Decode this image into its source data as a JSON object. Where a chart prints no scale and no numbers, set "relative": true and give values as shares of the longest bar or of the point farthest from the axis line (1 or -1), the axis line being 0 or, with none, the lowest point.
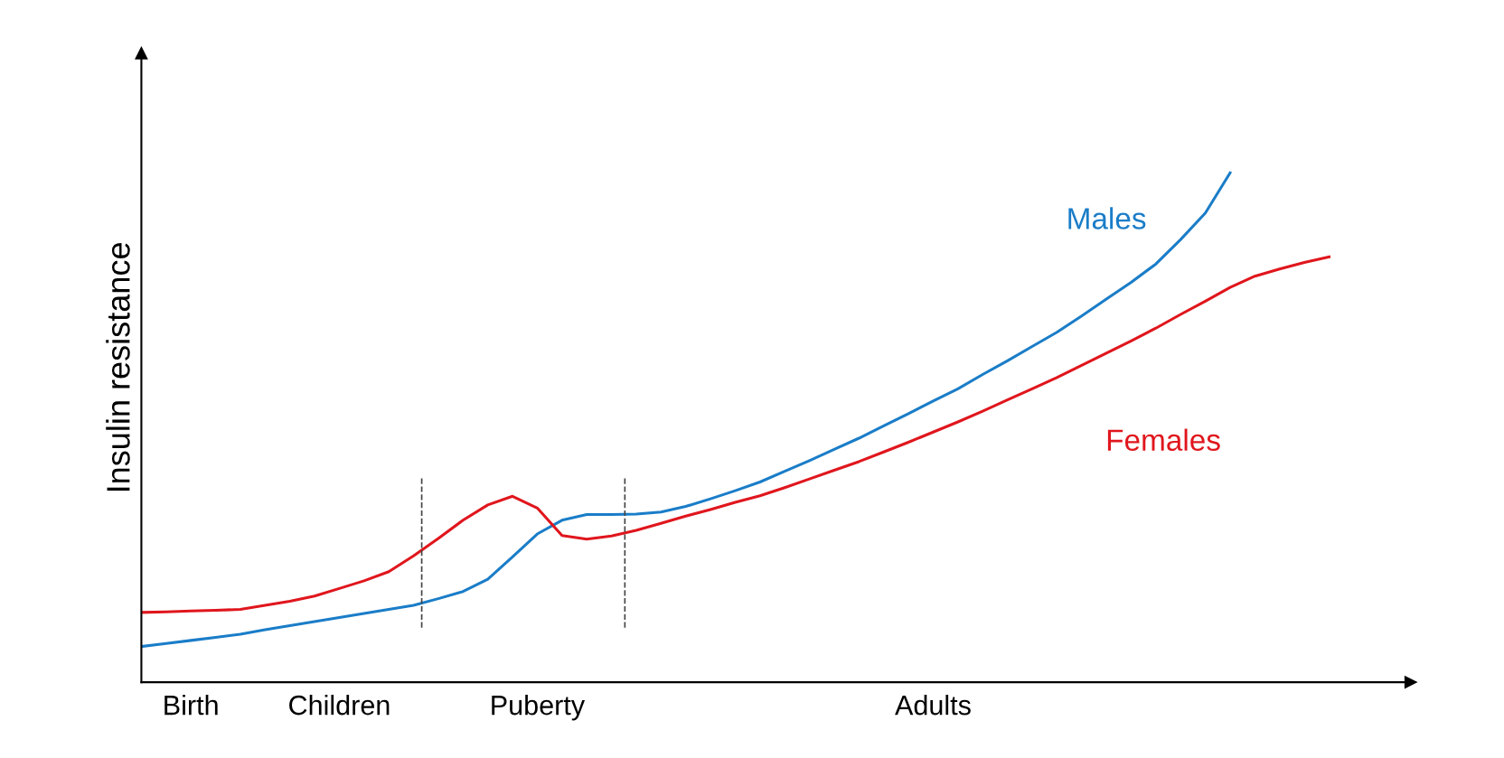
{
  "chart_data": {
    "type": "line",
    "ylabel": "Insulin resistance",
    "relative": true,
    "categories": [
      null,
      null,
      "Birth",
      null,
      null,
      null,
      null,
      null,
      "Children",
      null,
      null,
      null,
      null,
      null,
      null,
      null,
      "Puberty",
      null,
      null,
      null,
      null,
      null,
      null,
      null,
      null,
      null,
      null,
      null,
      null,
      null,
      null,
      null,
      "Adults",
      null,
      null,
      null,
      null,
      null,
      null,
      null,
      null,
      null,
      null,
      null,
      null,
      null,
      null,
      null,
      null
    ],
    "series": [
      {
        "name": "Males",
        "color": "#1a7dc8",
        "values": [
          0.07,
          0.076,
          0.082,
          0.088,
          0.094,
          0.103,
          0.111,
          0.119,
          0.127,
          0.135,
          0.143,
          0.151,
          0.164,
          0.178,
          0.202,
          0.246,
          0.291,
          0.318,
          0.329,
          0.329,
          0.33,
          0.334,
          0.345,
          0.36,
          0.376,
          0.393,
          0.414,
          0.435,
          0.457,
          0.479,
          0.503,
          0.527,
          0.552,
          0.576,
          0.604,
          0.631,
          0.659,
          0.687,
          0.719,
          0.752,
          0.785,
          0.821,
          0.869,
          0.921,
          1,
          null,
          null,
          null,
          null
        ]
      },
      {
        "name": "Females",
        "color": "#e0161d",
        "values": [
          0.137,
          0.138,
          0.14,
          0.141,
          0.143,
          0.151,
          0.159,
          0.169,
          0.184,
          0.199,
          0.217,
          0.248,
          0.282,
          0.318,
          0.348,
          0.365,
          0.342,
          0.288,
          0.281,
          0.287,
          0.298,
          0.312,
          0.326,
          0.339,
          0.353,
          0.366,
          0.382,
          0.399,
          0.416,
          0.433,
          0.452,
          0.471,
          0.491,
          0.511,
          0.532,
          0.554,
          0.576,
          0.598,
          0.622,
          0.646,
          0.67,
          0.695,
          0.722,
          0.748,
          0.775,
          0.797,
          0.811,
          0.824,
          0.835
        ]
      }
    ]
  }
}
